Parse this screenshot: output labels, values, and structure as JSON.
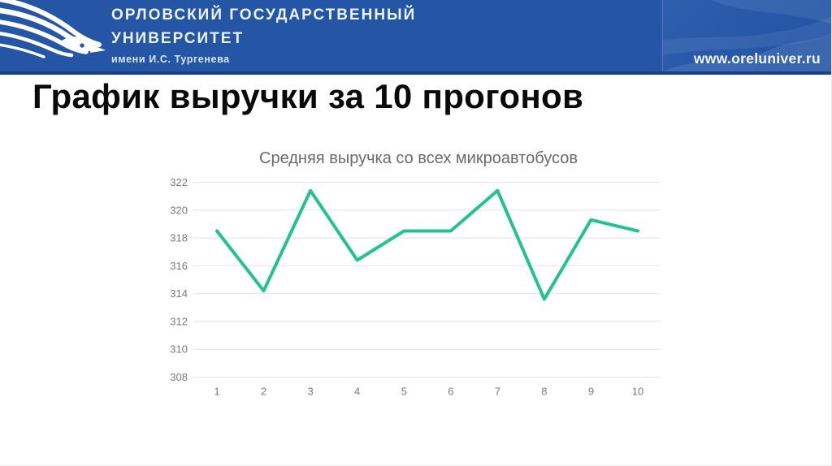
{
  "header": {
    "university_line1": "ОРЛОВСКИЙ ГОСУДАРСТВЕННЫЙ",
    "university_line2": "УНИВЕРСИТЕТ",
    "university_line3": "имени И.С. Тургенева",
    "website": "www.oreluniver.ru",
    "logo_icon": "eagle-logo-icon",
    "colors": {
      "banner_bg": "#2456a5",
      "banner_border": "#1c4086",
      "text": "#edf3fb"
    }
  },
  "slide": {
    "title": "График выручки за 10 прогонов"
  },
  "chart_data": {
    "type": "line",
    "title": "Средняя выручка со всех микроавтобусов",
    "x": [
      1,
      2,
      3,
      4,
      5,
      6,
      7,
      8,
      9,
      10
    ],
    "values": [
      318.5,
      314.2,
      321.4,
      316.4,
      318.5,
      318.5,
      321.4,
      313.6,
      319.3,
      318.5
    ],
    "xlabel": "",
    "ylabel": "",
    "ylim": [
      308,
      322
    ],
    "ytick_step": 2,
    "grid": true,
    "legend": "none",
    "line_color": "#23c28f",
    "grid_color": "#e4e4e4",
    "tick_color": "#7b7b7b",
    "title_color": "#6a6a6a"
  }
}
